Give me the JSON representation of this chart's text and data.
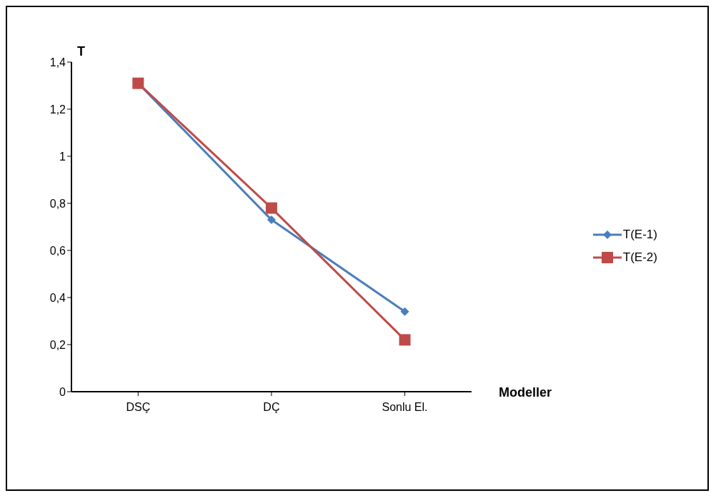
{
  "chart_data": {
    "type": "line",
    "xlabel": "Modeller",
    "ylabel": "T",
    "categories": [
      "DSÇ",
      "DÇ",
      "Sonlu El."
    ],
    "series": [
      {
        "name": "T(E-1)",
        "color": "#4a7ebb",
        "marker": "diamond",
        "values": [
          1.31,
          0.73,
          0.34
        ]
      },
      {
        "name": "T(E-2)",
        "color": "#be4b48",
        "marker": "square",
        "values": [
          1.31,
          0.78,
          0.22
        ]
      }
    ],
    "ylim": [
      0,
      1.4
    ],
    "yticks": [
      0,
      {
        "value": 0.2,
        "label": "0,2"
      },
      {
        "value": 0.4,
        "label": "0,4"
      },
      {
        "value": 0.6,
        "label": "0,6"
      },
      {
        "value": 0.8,
        "label": "0,8"
      },
      1,
      {
        "value": 1.2,
        "label": "1,2"
      },
      {
        "value": 1.4,
        "label": "1,4"
      }
    ],
    "grid": false,
    "legend": "right",
    "line_style": "solid"
  }
}
